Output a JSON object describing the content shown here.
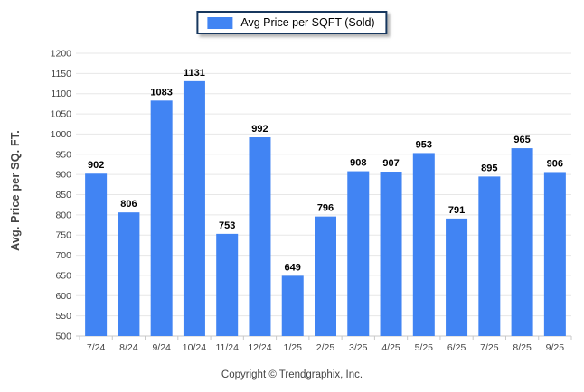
{
  "legend": {
    "label": "Avg Price per SQFT (Sold)",
    "swatch_color": "#4184f3"
  },
  "footer": "Copyright © Trendgraphix, Inc.",
  "chart_data": {
    "type": "bar",
    "title": "",
    "xlabel": "",
    "ylabel": "Avg. Price per SQ. FT.",
    "categories": [
      "7/24",
      "8/24",
      "9/24",
      "10/24",
      "11/24",
      "12/24",
      "1/25",
      "2/25",
      "3/25",
      "4/25",
      "5/25",
      "6/25",
      "7/25",
      "8/25",
      "9/25"
    ],
    "values": [
      902,
      806,
      1083,
      1131,
      753,
      992,
      649,
      796,
      908,
      907,
      953,
      791,
      895,
      965,
      906
    ],
    "ylim": [
      500,
      1200
    ],
    "ytick_step": 50,
    "grid": true,
    "legend_position": "top-center",
    "legend_entries": [
      "Avg Price per SQFT (Sold)"
    ],
    "bar_color": "#4184f3",
    "gridline_color": "#e7e7e7",
    "axis_line_color": "#c8c8c8",
    "tick_label_color": "#444444",
    "value_label_color": "#000000"
  }
}
